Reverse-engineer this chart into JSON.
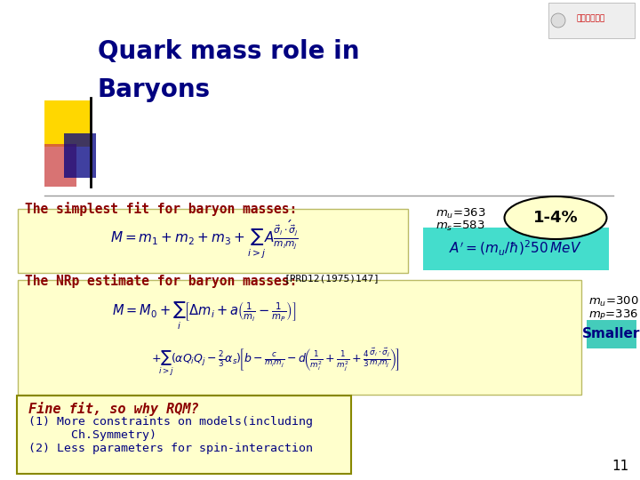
{
  "title_line1": "Quark mass role in",
  "title_line2": "Baryons",
  "title_color": "#000080",
  "bg_color": "#ffffff",
  "section1_label": "The simplest fit for baryon masses:",
  "section1_color": "#8B0000",
  "formula1_bg": "#ffffcc",
  "formula2_bg": "#44ddcc",
  "ellipse_label": "1-4%",
  "ellipse_fill": "#ffffcc",
  "mu_label1_line1": "mu=363",
  "mu_label1_line2": "ms=583",
  "section2_label": "The NRp estimate for baryon masses:",
  "section2_ref": "[PRD12(1975)147]",
  "section2_color": "#8B0000",
  "formula34_bg": "#ffffcc",
  "mu_label2_line1": "mu=300",
  "mu_label2_line2": "mP=336",
  "smaller_label": "Smaller",
  "smaller_bg": "#44ccbb",
  "smaller_text_color": "#000080",
  "bottom_box_bg": "#ffffcc",
  "bottom_box_border": "#888800",
  "bottom_text_line1": "Fine fit, so why RQM?",
  "bottom_text_line2": "(1) More constraints on models(including",
  "bottom_text_line3": "      Ch.Symmetry)",
  "bottom_text_line4": "(2) Less parameters for spin-interaction",
  "bottom_text_color1": "#8B0000",
  "bottom_text_color2": "#000080",
  "page_number": "11",
  "deco_gold": "#FFD700",
  "deco_red": "#cc4444",
  "deco_blue": "#000080",
  "separator_color": "#999999",
  "formula_color": "#000080"
}
